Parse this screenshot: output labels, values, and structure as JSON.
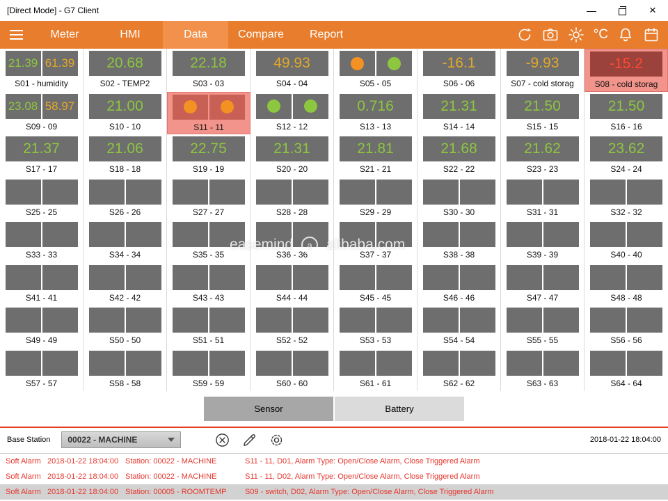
{
  "window": {
    "title": "[Direct Mode] - G7 Client",
    "controls": {
      "minimize": "—",
      "close": "×"
    }
  },
  "nav": {
    "tabs": [
      {
        "label": "Meter",
        "active": false
      },
      {
        "label": "HMI",
        "active": false
      },
      {
        "label": "Data",
        "active": true
      },
      {
        "label": "Compare",
        "active": false
      },
      {
        "label": "Report",
        "active": false
      }
    ],
    "temperature_unit": "°C"
  },
  "colors": {
    "accent_orange": "#E87E2D",
    "active_tab_orange": "#F2914B",
    "tile_gray": "#6E6E6E",
    "alert_pink": "#F2948B",
    "value_green": "#8DC63F",
    "value_yellow": "#E3A82A",
    "value_red": "#FF4A32",
    "alarm_red": "#E5352B"
  },
  "grid": {
    "tiles": [
      {
        "label": "S01 - humidity",
        "type": "dual",
        "values": [
          {
            "text": "21.39",
            "color": "green"
          },
          {
            "text": "61.39",
            "color": "yellow"
          }
        ]
      },
      {
        "label": "S02 - TEMP2",
        "type": "single",
        "values": [
          {
            "text": "20.68",
            "color": "green"
          }
        ]
      },
      {
        "label": "S03 - 03",
        "type": "single",
        "values": [
          {
            "text": "22.18",
            "color": "green"
          }
        ]
      },
      {
        "label": "S04 - 04",
        "type": "single",
        "values": [
          {
            "text": "49.93",
            "color": "yellow"
          }
        ]
      },
      {
        "label": "S05 - 05",
        "type": "circles",
        "circles": [
          "orange",
          "green"
        ]
      },
      {
        "label": "S06 - 06",
        "type": "single",
        "values": [
          {
            "text": "-16.1",
            "color": "yellow"
          }
        ]
      },
      {
        "label": "S07 - cold storag",
        "type": "single",
        "values": [
          {
            "text": "-9.93",
            "color": "yellow"
          }
        ]
      },
      {
        "label": "S08 - cold storag",
        "type": "single",
        "values": [
          {
            "text": "-15.2",
            "color": "red"
          }
        ],
        "alert": true
      },
      {
        "label": "S09 - 09",
        "type": "dual",
        "values": [
          {
            "text": "23.08",
            "color": "green"
          },
          {
            "text": "58.97",
            "color": "yellow"
          }
        ]
      },
      {
        "label": "S10 - 10",
        "type": "single",
        "values": [
          {
            "text": "21.00",
            "color": "green"
          }
        ]
      },
      {
        "label": "S11 - 11",
        "type": "circles",
        "circles": [
          "orange",
          "orange"
        ],
        "alert": true
      },
      {
        "label": "S12 - 12",
        "type": "circles",
        "circles": [
          "green",
          "green"
        ]
      },
      {
        "label": "S13 - 13",
        "type": "single",
        "values": [
          {
            "text": "0.716",
            "color": "green"
          }
        ]
      },
      {
        "label": "S14 - 14",
        "type": "single",
        "values": [
          {
            "text": "21.31",
            "color": "green"
          }
        ]
      },
      {
        "label": "S15 - 15",
        "type": "single",
        "values": [
          {
            "text": "21.50",
            "color": "green"
          }
        ]
      },
      {
        "label": "S16 - 16",
        "type": "single",
        "values": [
          {
            "text": "21.50",
            "color": "green"
          }
        ]
      },
      {
        "label": "S17 - 17",
        "type": "single",
        "values": [
          {
            "text": "21.37",
            "color": "green"
          }
        ]
      },
      {
        "label": "S18 - 18",
        "type": "single",
        "values": [
          {
            "text": "21.06",
            "color": "green"
          }
        ]
      },
      {
        "label": "S19 - 19",
        "type": "single",
        "values": [
          {
            "text": "22.75",
            "color": "green"
          }
        ]
      },
      {
        "label": "S20 - 20",
        "type": "single",
        "values": [
          {
            "text": "21.31",
            "color": "green"
          }
        ]
      },
      {
        "label": "S21 - 21",
        "type": "single",
        "values": [
          {
            "text": "21.81",
            "color": "green"
          }
        ]
      },
      {
        "label": "S22 - 22",
        "type": "single",
        "values": [
          {
            "text": "21.68",
            "color": "green"
          }
        ]
      },
      {
        "label": "S23 - 23",
        "type": "single",
        "values": [
          {
            "text": "21.62",
            "color": "green"
          }
        ]
      },
      {
        "label": "S24 - 24",
        "type": "single",
        "values": [
          {
            "text": "23.62",
            "color": "green"
          }
        ]
      },
      {
        "label": "S25 - 25",
        "type": "empty"
      },
      {
        "label": "S26 - 26",
        "type": "empty"
      },
      {
        "label": "S27 - 27",
        "type": "empty"
      },
      {
        "label": "S28 - 28",
        "type": "empty"
      },
      {
        "label": "S29 - 29",
        "type": "empty"
      },
      {
        "label": "S30 - 30",
        "type": "empty"
      },
      {
        "label": "S31 - 31",
        "type": "empty"
      },
      {
        "label": "S32 - 32",
        "type": "empty"
      },
      {
        "label": "S33 - 33",
        "type": "empty"
      },
      {
        "label": "S34 - 34",
        "type": "empty"
      },
      {
        "label": "S35 - 35",
        "type": "empty"
      },
      {
        "label": "S36 - 36",
        "type": "empty"
      },
      {
        "label": "S37 - 37",
        "type": "empty"
      },
      {
        "label": "S38 - 38",
        "type": "empty"
      },
      {
        "label": "S39 - 39",
        "type": "empty"
      },
      {
        "label": "S40 - 40",
        "type": "empty"
      },
      {
        "label": "S41 - 41",
        "type": "empty"
      },
      {
        "label": "S42 - 42",
        "type": "empty"
      },
      {
        "label": "S43 - 43",
        "type": "empty"
      },
      {
        "label": "S44 - 44",
        "type": "empty"
      },
      {
        "label": "S45 - 45",
        "type": "empty"
      },
      {
        "label": "S46 - 46",
        "type": "empty"
      },
      {
        "label": "S47 - 47",
        "type": "empty"
      },
      {
        "label": "S48 - 48",
        "type": "empty"
      },
      {
        "label": "S49 - 49",
        "type": "empty"
      },
      {
        "label": "S50 - 50",
        "type": "empty"
      },
      {
        "label": "S51 - 51",
        "type": "empty"
      },
      {
        "label": "S52 - 52",
        "type": "empty"
      },
      {
        "label": "S53 - 53",
        "type": "empty"
      },
      {
        "label": "S54 - 54",
        "type": "empty"
      },
      {
        "label": "S55 - 55",
        "type": "empty"
      },
      {
        "label": "S56 - 56",
        "type": "empty"
      },
      {
        "label": "S57 - 57",
        "type": "empty"
      },
      {
        "label": "S58 - 58",
        "type": "empty"
      },
      {
        "label": "S59 - 59",
        "type": "empty"
      },
      {
        "label": "S60 - 60",
        "type": "empty"
      },
      {
        "label": "S61 - 61",
        "type": "empty"
      },
      {
        "label": "S62 - 62",
        "type": "empty"
      },
      {
        "label": "S63 - 63",
        "type": "empty"
      },
      {
        "label": "S64 - 64",
        "type": "empty"
      }
    ]
  },
  "view_buttons": {
    "sensor": "Sensor",
    "battery": "Battery"
  },
  "base_station": {
    "label": "Base Station",
    "selected_station": "00022 - MACHINE",
    "timestamp": "2018-01-22 18:04:00"
  },
  "alarms": [
    {
      "type": "Soft Alarm",
      "time": "2018-01-22 18:04:00",
      "station": "Station: 00022 - MACHINE",
      "detail": "S11 - 11, D01, Alarm Type: Open/Close Alarm, Close Triggered Alarm",
      "selected": false
    },
    {
      "type": "Soft Alarm",
      "time": "2018-01-22 18:04:00",
      "station": "Station: 00022 - MACHINE",
      "detail": "S11 - 11, D02, Alarm Type: Open/Close Alarm, Close Triggered Alarm",
      "selected": false
    },
    {
      "type": "Soft Alarm",
      "time": "2018-01-22 18:04:00",
      "station": "Station: 00005 - ROOMTEMP",
      "detail": "S09 - switch, D02, Alarm Type: Open/Close Alarm, Close Triggered Alarm",
      "selected": true
    }
  ],
  "watermark": {
    "brand": "easemind",
    "logo": "a",
    "site": "alibaba.com"
  }
}
